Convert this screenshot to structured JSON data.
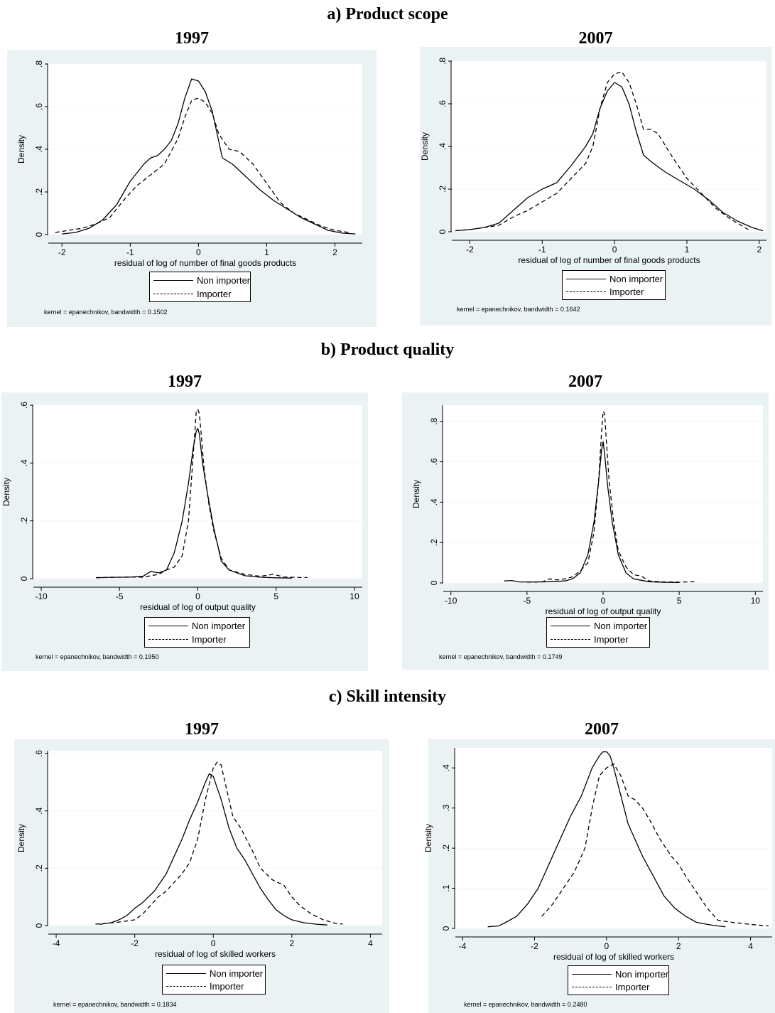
{
  "sections": [
    {
      "title": "a) Product scope"
    },
    {
      "title": "b) Product quality"
    },
    {
      "title": "c) Skill intensity"
    }
  ],
  "legend": {
    "non_importer": "Non importer",
    "importer": "Importer"
  },
  "colors": {
    "panel_bg": "#eaf2f3",
    "line": "#000000",
    "grid": "#f4f8f8"
  },
  "chart_data": [
    {
      "type": "line",
      "year": "1997",
      "ylabel": "Density",
      "xlabel": "residual of log of number of final goods products",
      "xticks": [
        -2,
        -1,
        0,
        1,
        2
      ],
      "yticks": [
        0,
        0.2,
        0.4,
        0.6,
        0.8
      ],
      "ytick_labels": [
        "0",
        ".2",
        ".4",
        ".6",
        ".8"
      ],
      "xlim": [
        -2.2,
        2.4
      ],
      "ylim": [
        0,
        0.8
      ],
      "note": "kernel = epanechnikov, bandwidth = 0.1502",
      "series": [
        {
          "name": "Non importer",
          "style": "solid",
          "x": [
            -2.0,
            -1.8,
            -1.6,
            -1.4,
            -1.2,
            -1.0,
            -0.8,
            -0.7,
            -0.6,
            -0.5,
            -0.4,
            -0.3,
            -0.2,
            -0.1,
            0.0,
            0.1,
            0.2,
            0.35,
            0.5,
            0.7,
            0.9,
            1.1,
            1.3,
            1.5,
            1.7,
            1.9,
            2.1,
            2.3
          ],
          "y": [
            0.003,
            0.01,
            0.03,
            0.07,
            0.14,
            0.25,
            0.33,
            0.36,
            0.37,
            0.4,
            0.44,
            0.52,
            0.64,
            0.73,
            0.72,
            0.67,
            0.58,
            0.36,
            0.33,
            0.27,
            0.21,
            0.16,
            0.12,
            0.08,
            0.05,
            0.02,
            0.007,
            0.003
          ]
        },
        {
          "name": "Importer",
          "style": "dashed",
          "x": [
            -2.1,
            -1.9,
            -1.7,
            -1.5,
            -1.3,
            -1.1,
            -0.9,
            -0.7,
            -0.5,
            -0.3,
            -0.2,
            -0.1,
            0.0,
            0.1,
            0.2,
            0.3,
            0.45,
            0.6,
            0.8,
            1.0,
            1.2,
            1.4,
            1.6,
            1.8,
            2.0,
            2.2
          ],
          "y": [
            0.01,
            0.02,
            0.03,
            0.05,
            0.08,
            0.16,
            0.23,
            0.28,
            0.33,
            0.45,
            0.55,
            0.63,
            0.64,
            0.62,
            0.57,
            0.47,
            0.4,
            0.39,
            0.33,
            0.24,
            0.15,
            0.1,
            0.07,
            0.04,
            0.02,
            0.01
          ]
        }
      ]
    },
    {
      "type": "line",
      "year": "2007",
      "ylabel": "Density",
      "xlabel": "residual of log of number of final goods products",
      "xticks": [
        -2,
        -1,
        0,
        1,
        2
      ],
      "yticks": [
        0,
        0.2,
        0.4,
        0.6,
        0.8
      ],
      "ytick_labels": [
        "0",
        ".2",
        ".4",
        ".6",
        ".8"
      ],
      "xlim": [
        -2.25,
        2.1
      ],
      "ylim": [
        0,
        0.8
      ],
      "note": "kernel = epanechnikov, bandwidth = 0.1642",
      "series": [
        {
          "name": "Non importer",
          "style": "solid",
          "x": [
            -2.2,
            -2.0,
            -1.8,
            -1.6,
            -1.4,
            -1.2,
            -1.0,
            -0.8,
            -0.6,
            -0.4,
            -0.3,
            -0.2,
            -0.1,
            0.0,
            0.1,
            0.2,
            0.3,
            0.4,
            0.5,
            0.7,
            0.9,
            1.1,
            1.3,
            1.5,
            1.7,
            1.9,
            2.05
          ],
          "y": [
            0.005,
            0.01,
            0.02,
            0.04,
            0.1,
            0.16,
            0.2,
            0.23,
            0.31,
            0.4,
            0.46,
            0.58,
            0.66,
            0.7,
            0.68,
            0.6,
            0.47,
            0.36,
            0.33,
            0.28,
            0.24,
            0.2,
            0.15,
            0.09,
            0.05,
            0.02,
            0.005
          ]
        },
        {
          "name": "Importer",
          "style": "dashed",
          "x": [
            -2.2,
            -2.0,
            -1.8,
            -1.6,
            -1.4,
            -1.2,
            -1.0,
            -0.8,
            -0.6,
            -0.4,
            -0.3,
            -0.2,
            -0.1,
            0.0,
            0.1,
            0.2,
            0.3,
            0.4,
            0.5,
            0.6,
            0.8,
            1.0,
            1.2,
            1.4,
            1.6,
            1.85
          ],
          "y": [
            0.005,
            0.01,
            0.02,
            0.03,
            0.07,
            0.1,
            0.14,
            0.18,
            0.25,
            0.32,
            0.4,
            0.58,
            0.7,
            0.74,
            0.75,
            0.7,
            0.6,
            0.48,
            0.48,
            0.46,
            0.35,
            0.25,
            0.18,
            0.11,
            0.06,
            0.01
          ]
        }
      ]
    },
    {
      "type": "line",
      "year": "1997",
      "ylabel": "Density",
      "xlabel": "residual of log of output quality",
      "xticks": [
        -10,
        -5,
        0,
        5,
        10
      ],
      "yticks": [
        0,
        0.2,
        0.4,
        0.6
      ],
      "ytick_labels": [
        "0",
        ".2",
        ".4",
        ".6"
      ],
      "xlim": [
        -10.5,
        10.5
      ],
      "ylim": [
        0,
        0.6
      ],
      "note": "kernel = epanechnikov, bandwidth = 0.1950",
      "series": [
        {
          "name": "Non importer",
          "style": "solid",
          "x": [
            -6.5,
            -5.5,
            -4.5,
            -3.5,
            -3.0,
            -2.5,
            -2.0,
            -1.5,
            -1.0,
            -0.6,
            -0.3,
            -0.1,
            0.0,
            0.1,
            0.3,
            0.6,
            1.0,
            1.5,
            2.0,
            3.0,
            4.0,
            5.0,
            6.0
          ],
          "y": [
            0.003,
            0.005,
            0.005,
            0.008,
            0.025,
            0.02,
            0.03,
            0.09,
            0.2,
            0.33,
            0.45,
            0.51,
            0.52,
            0.5,
            0.4,
            0.3,
            0.18,
            0.06,
            0.03,
            0.01,
            0.005,
            0.003,
            0.002
          ]
        },
        {
          "name": "Importer",
          "style": "dashed",
          "x": [
            -6.5,
            -5.5,
            -4.5,
            -3.5,
            -2.5,
            -2.0,
            -1.5,
            -1.0,
            -0.6,
            -0.4,
            -0.2,
            -0.1,
            0.0,
            0.1,
            0.2,
            0.4,
            0.7,
            1.0,
            1.5,
            2.0,
            3.0,
            4.0,
            4.8,
            5.5,
            6.5,
            7.0
          ],
          "y": [
            0.004,
            0.004,
            0.006,
            0.005,
            0.015,
            0.03,
            0.04,
            0.08,
            0.2,
            0.35,
            0.5,
            0.58,
            0.585,
            0.57,
            0.51,
            0.38,
            0.26,
            0.17,
            0.07,
            0.03,
            0.015,
            0.008,
            0.015,
            0.006,
            0.004,
            0.004
          ]
        }
      ]
    },
    {
      "type": "line",
      "year": "2007",
      "ylabel": "Density",
      "xlabel": "residual of log of output quality",
      "xticks": [
        -10,
        -5,
        0,
        5,
        10
      ],
      "yticks": [
        0,
        0.2,
        0.4,
        0.6,
        0.8
      ],
      "ytick_labels": [
        "0",
        ".2",
        ".4",
        ".6",
        ".8"
      ],
      "xlim": [
        -10.5,
        10.5
      ],
      "ylim": [
        0,
        0.88
      ],
      "note": "kernel = epanechnikov, bandwidth = 0.1749",
      "series": [
        {
          "name": "Non importer",
          "style": "solid",
          "x": [
            -6.5,
            -6.0,
            -5.5,
            -4.5,
            -3.5,
            -2.5,
            -2.0,
            -1.5,
            -1.0,
            -0.6,
            -0.3,
            -0.1,
            0.0,
            0.1,
            0.3,
            0.6,
            1.0,
            1.5,
            2.0,
            3.0,
            4.0,
            5.0
          ],
          "y": [
            0.01,
            0.012,
            0.005,
            0.005,
            0.006,
            0.01,
            0.02,
            0.05,
            0.14,
            0.3,
            0.5,
            0.66,
            0.7,
            0.64,
            0.48,
            0.3,
            0.14,
            0.05,
            0.02,
            0.006,
            0.003,
            0.002
          ]
        },
        {
          "name": "Importer",
          "style": "dashed",
          "x": [
            -5.0,
            -4.0,
            -3.5,
            -3.0,
            -2.5,
            -2.0,
            -1.5,
            -1.0,
            -0.6,
            -0.3,
            -0.1,
            0.0,
            0.1,
            0.2,
            0.4,
            0.7,
            1.0,
            1.5,
            2.0,
            2.5,
            3.0,
            4.0,
            5.0,
            5.5,
            6.2
          ],
          "y": [
            0.004,
            0.005,
            0.02,
            0.015,
            0.02,
            0.03,
            0.06,
            0.1,
            0.25,
            0.5,
            0.75,
            0.85,
            0.84,
            0.72,
            0.5,
            0.3,
            0.16,
            0.08,
            0.04,
            0.035,
            0.01,
            0.005,
            0.004,
            0.005,
            0.006
          ]
        }
      ]
    },
    {
      "type": "line",
      "year": "1997",
      "ylabel": "Density",
      "xlabel": "residual of log of skilled workers",
      "xticks": [
        -4,
        -2,
        0,
        2,
        4
      ],
      "yticks": [
        0,
        0.2,
        0.4,
        0.6
      ],
      "ytick_labels": [
        "0",
        ".2",
        ".4",
        ".6"
      ],
      "xlim": [
        -4.2,
        4.3
      ],
      "ylim": [
        0,
        0.61
      ],
      "note": "kernel = epanechnikov, bandwidth = 0.1834",
      "series": [
        {
          "name": "Non importer",
          "style": "solid",
          "x": [
            -2.9,
            -2.6,
            -2.4,
            -2.2,
            -2.0,
            -1.8,
            -1.5,
            -1.2,
            -1.0,
            -0.8,
            -0.6,
            -0.4,
            -0.2,
            -0.1,
            0.0,
            0.2,
            0.4,
            0.6,
            0.8,
            1.0,
            1.2,
            1.4,
            1.6,
            1.8,
            2.0,
            2.3,
            2.6,
            2.9
          ],
          "y": [
            0.004,
            0.01,
            0.02,
            0.035,
            0.06,
            0.08,
            0.12,
            0.18,
            0.24,
            0.3,
            0.37,
            0.43,
            0.5,
            0.53,
            0.52,
            0.44,
            0.34,
            0.27,
            0.23,
            0.18,
            0.13,
            0.09,
            0.055,
            0.035,
            0.02,
            0.01,
            0.005,
            0.002
          ]
        },
        {
          "name": "Importer",
          "style": "dashed",
          "x": [
            -3.0,
            -2.7,
            -2.4,
            -2.0,
            -1.8,
            -1.6,
            -1.4,
            -1.2,
            -1.0,
            -0.8,
            -0.6,
            -0.4,
            -0.2,
            0.0,
            0.1,
            0.2,
            0.3,
            0.5,
            0.7,
            1.0,
            1.2,
            1.5,
            1.8,
            2.0,
            2.2,
            2.5,
            2.8,
            3.1,
            3.3
          ],
          "y": [
            0.005,
            0.008,
            0.012,
            0.02,
            0.04,
            0.07,
            0.1,
            0.12,
            0.15,
            0.18,
            0.22,
            0.3,
            0.44,
            0.55,
            0.57,
            0.56,
            0.5,
            0.38,
            0.34,
            0.26,
            0.2,
            0.16,
            0.14,
            0.1,
            0.07,
            0.04,
            0.02,
            0.008,
            0.005
          ]
        }
      ]
    },
    {
      "type": "line",
      "year": "2007",
      "ylabel": "Density",
      "xlabel": "residual of log of skilled workers",
      "xticks": [
        -4,
        -2,
        0,
        2,
        4
      ],
      "yticks": [
        0,
        0.1,
        0.2,
        0.3,
        0.4
      ],
      "ytick_labels": [
        "0",
        ".1",
        ".2",
        ".3",
        ".4"
      ],
      "xlim": [
        -4.2,
        4.6
      ],
      "ylim": [
        0,
        0.45
      ],
      "note": "kernel = epanechnikov, bandwidth = 0.2480",
      "series": [
        {
          "name": "Non importer",
          "style": "solid",
          "x": [
            -3.3,
            -3.0,
            -2.8,
            -2.5,
            -2.2,
            -1.9,
            -1.6,
            -1.3,
            -1.0,
            -0.7,
            -0.4,
            -0.2,
            -0.1,
            0.0,
            0.1,
            0.2,
            0.4,
            0.6,
            0.8,
            1.0,
            1.3,
            1.6,
            1.9,
            2.2,
            2.5,
            2.8,
            3.1,
            3.3
          ],
          "y": [
            0.004,
            0.006,
            0.015,
            0.03,
            0.06,
            0.1,
            0.16,
            0.22,
            0.28,
            0.33,
            0.4,
            0.43,
            0.44,
            0.44,
            0.43,
            0.4,
            0.33,
            0.26,
            0.22,
            0.18,
            0.13,
            0.08,
            0.05,
            0.03,
            0.015,
            0.01,
            0.006,
            0.004
          ]
        },
        {
          "name": "Importer",
          "style": "dashed",
          "x": [
            -1.8,
            -1.5,
            -1.2,
            -0.9,
            -0.6,
            -0.4,
            -0.2,
            0.0,
            0.2,
            0.4,
            0.6,
            0.8,
            1.0,
            1.2,
            1.5,
            1.8,
            2.0,
            2.2,
            2.5,
            2.8,
            3.1,
            3.5,
            4.0,
            4.5
          ],
          "y": [
            0.03,
            0.06,
            0.1,
            0.14,
            0.2,
            0.3,
            0.38,
            0.4,
            0.41,
            0.38,
            0.33,
            0.32,
            0.3,
            0.27,
            0.22,
            0.18,
            0.16,
            0.13,
            0.09,
            0.05,
            0.02,
            0.015,
            0.01,
            0.006
          ]
        }
      ]
    }
  ]
}
